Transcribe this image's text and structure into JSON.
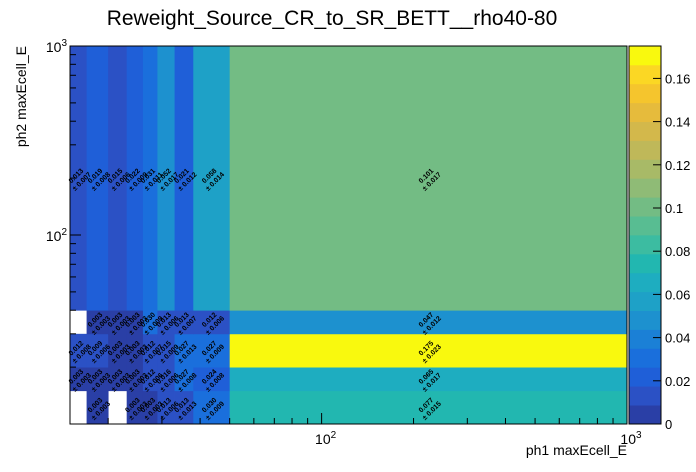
{
  "chart_data": {
    "type": "heatmap",
    "title": "Reweight_Source_CR_to_SR_BETT__rho40-80",
    "xlabel": "ph1 maxEcell_E",
    "ylabel": "ph2 maxEcell_E",
    "x_scale": "log",
    "y_scale": "log",
    "xlim": [
      15,
      1000
    ],
    "ylim": [
      10,
      1000
    ],
    "x_ticks": [
      {
        "value": 100,
        "base": "10",
        "exp": "2"
      },
      {
        "value": 1000,
        "base": "10",
        "exp": "3"
      }
    ],
    "y_ticks": [
      {
        "value": 100,
        "base": "10",
        "exp": "2"
      },
      {
        "value": 1000,
        "base": "10",
        "exp": "3"
      }
    ],
    "x_edges": [
      15,
      17,
      20,
      23,
      26,
      29,
      33,
      38,
      50,
      1000
    ],
    "y_edges": [
      10,
      15,
      20,
      30,
      40,
      1000
    ],
    "z_range": [
      0,
      0.175
    ],
    "colorbar_ticks": [
      "0",
      "0.02",
      "0.04",
      "0.06",
      "0.08",
      "0.1",
      "0.12",
      "0.14",
      "0.16"
    ],
    "colorbar_tick_values": [
      0,
      0.02,
      0.04,
      0.06,
      0.08,
      0.1,
      0.12,
      0.14,
      0.16
    ],
    "cells": [
      [
        null,
        0.003,
        null,
        0.003,
        0.003,
        0.013,
        0.013,
        0.03,
        0.077
      ],
      [
        0.003,
        0.003,
        0.003,
        0.003,
        0.012,
        0.016,
        0.027,
        0.024,
        0.065
      ],
      [
        0.012,
        0.009,
        0.003,
        0.003,
        0.012,
        0.015,
        0.027,
        0.027,
        0.175
      ],
      [
        null,
        0.003,
        0.003,
        0.003,
        0.03,
        0.013,
        0.013,
        0.012,
        0.047
      ],
      [
        0.013,
        0.019,
        0.015,
        0.022,
        0.031,
        0.052,
        0.021,
        0.058,
        0.101
      ]
    ],
    "errors": [
      [
        null,
        0.003,
        null,
        0.003,
        0.003,
        0.006,
        0.013,
        0.009,
        0.015
      ],
      [
        0.003,
        0.003,
        0.003,
        0.003,
        0.006,
        0.006,
        0.008,
        0.008,
        0.017
      ],
      [
        0.008,
        0.006,
        0.003,
        0.003,
        0.007,
        0.009,
        0.013,
        0.009,
        0.023
      ],
      [
        null,
        0.003,
        0.003,
        0.003,
        0.009,
        0.006,
        0.007,
        0.006,
        0.012
      ],
      [
        0.007,
        0.008,
        0.006,
        0.009,
        0.011,
        0.017,
        0.012,
        0.014,
        0.017
      ]
    ],
    "palette": [
      "#2a3fa6",
      "#2b51c5",
      "#1f5fd8",
      "#1a6fdc",
      "#1b80d6",
      "#1d91cf",
      "#1ea1c7",
      "#1eadc0",
      "#22b7b0",
      "#3cbca1",
      "#58bd92",
      "#73bc84",
      "#8fbb76",
      "#a8ba67",
      "#bfb859",
      "#d3b84b",
      "#e6bb3c",
      "#f5c52d",
      "#fbd724",
      "#f9f90e"
    ]
  }
}
